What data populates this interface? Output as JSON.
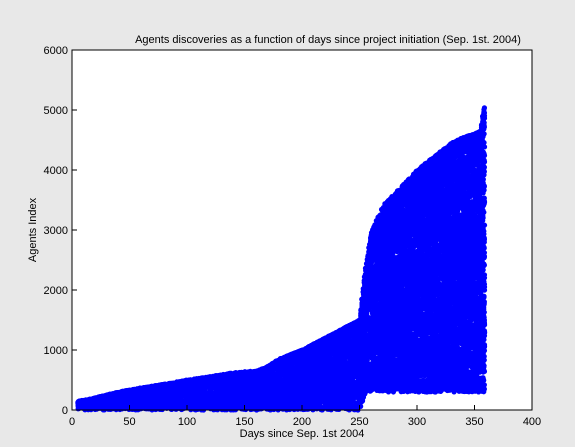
{
  "chart_data": {
    "type": "scatter",
    "title": "Agents discoveries as a function of days since project initiation (Sep. 1st. 2004)",
    "xlabel": "Days since Sep. 1st 2004",
    "ylabel": "Agents Index",
    "xlim": [
      0,
      400
    ],
    "ylim": [
      0,
      6000
    ],
    "xticks": [
      0,
      50,
      100,
      150,
      200,
      250,
      300,
      350,
      400
    ],
    "yticks": [
      0,
      1000,
      2000,
      3000,
      4000,
      5000,
      6000
    ],
    "grid": false,
    "legend": "none",
    "marker_color": "#0000ff",
    "background_color": "#e8e8e8",
    "plot_background_color": "#ffffff",
    "series": [
      {
        "x": [
          5,
          15,
          25,
          40,
          60,
          80,
          100,
          120,
          140,
          160,
          168,
          180,
          200,
          220,
          240,
          250,
          255,
          260,
          270,
          280,
          290,
          300,
          310,
          320,
          330,
          340,
          350,
          355,
          358
        ],
        "y_lower": [
          50,
          100,
          150,
          200,
          260,
          320,
          380,
          430,
          470,
          500,
          660,
          780,
          950,
          1150,
          1350,
          1450,
          2000,
          2600,
          3000,
          3350,
          3550,
          3750,
          3950,
          4100,
          4250,
          4400,
          4550,
          4600,
          4700
        ],
        "y_upper": [
          150,
          180,
          230,
          300,
          370,
          430,
          500,
          560,
          620,
          660,
          700,
          850,
          1000,
          1200,
          1400,
          1500,
          2400,
          3000,
          3400,
          3600,
          3800,
          4000,
          4150,
          4300,
          4450,
          4550,
          4600,
          4650,
          5050
        ],
        "y_floor": [
          0,
          0,
          0,
          0,
          0,
          0,
          0,
          0,
          0,
          0,
          0,
          0,
          0,
          0,
          0,
          0,
          300,
          300,
          300,
          300,
          300,
          300,
          300,
          300,
          300,
          300,
          300,
          300,
          300
        ]
      }
    ]
  }
}
